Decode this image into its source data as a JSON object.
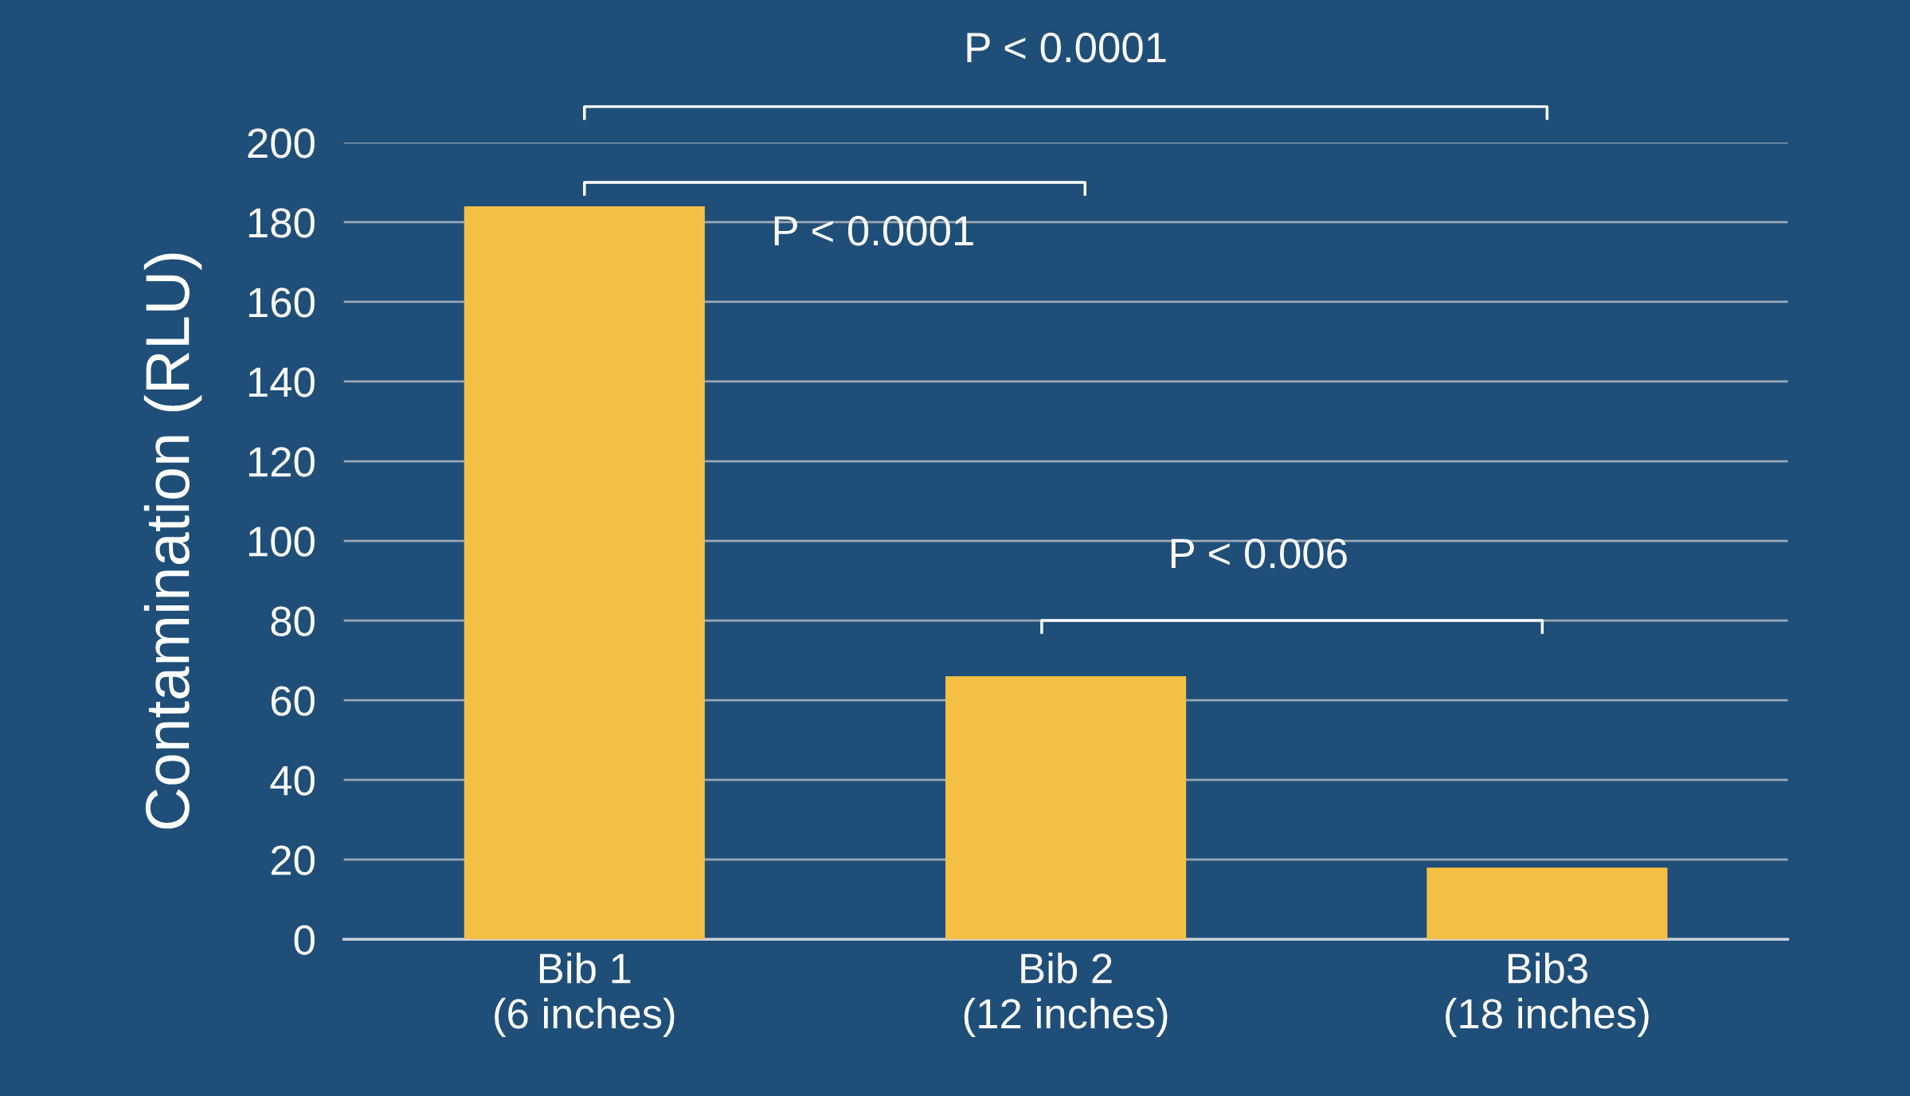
{
  "chart_data": {
    "type": "bar",
    "ylabel": "Contamination (RLU)",
    "categories": [
      "Bib 1\n(6 inches)",
      "Bib 2\n(12 inches)",
      "Bib3\n(18 inches)"
    ],
    "values": [
      184,
      66,
      18
    ],
    "color": "#f4c043",
    "ylim": [
      0,
      200
    ],
    "yticks": [
      0,
      20,
      40,
      60,
      80,
      100,
      120,
      140,
      160,
      180,
      200
    ],
    "grid": "y",
    "annotations": [
      "P < 0.0001",
      "P < 0.0001",
      "P < 0.006"
    ]
  }
}
